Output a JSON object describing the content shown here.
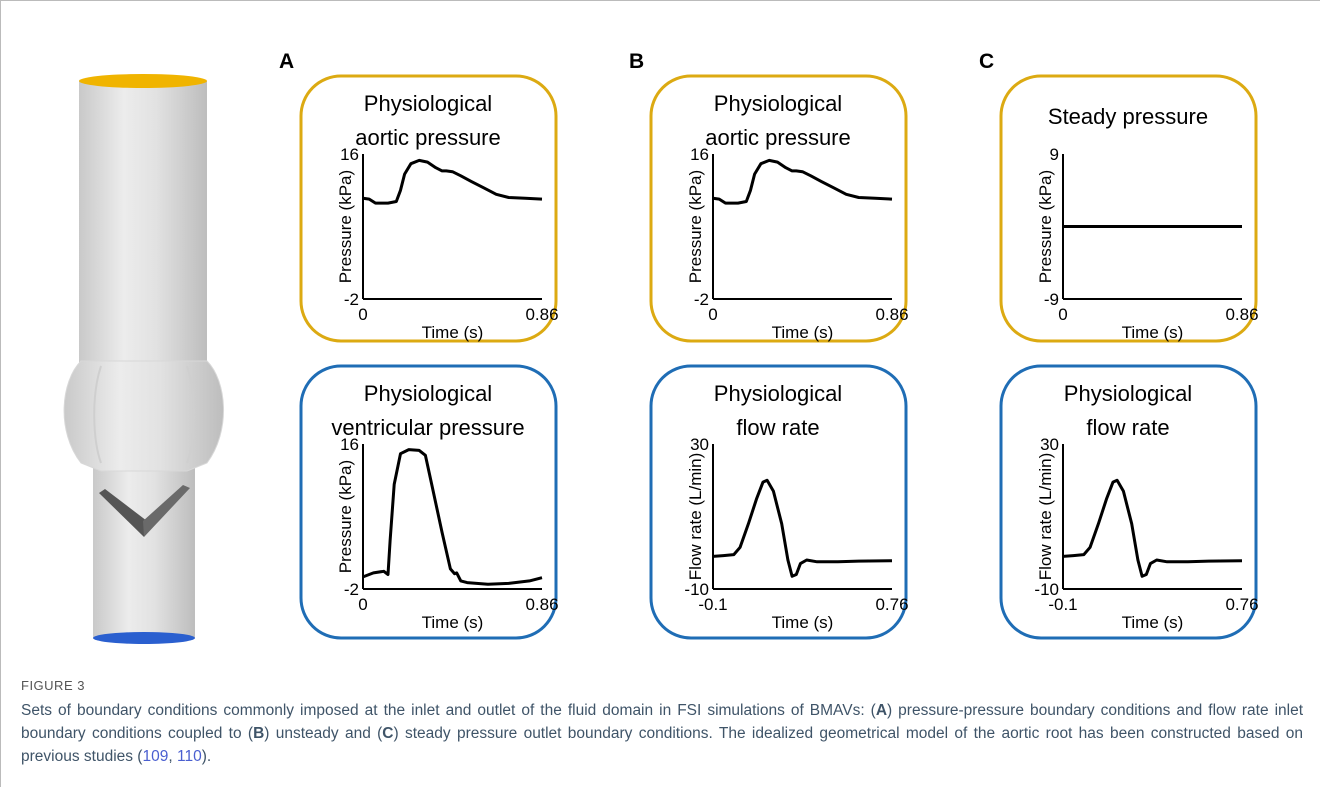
{
  "figure_label": "FIGURE 3",
  "panels": [
    "A",
    "B",
    "C"
  ],
  "chart_data": [
    {
      "type": "line",
      "title": [
        "Physiological",
        "aortic pressure"
      ],
      "x_label": "Time (s)",
      "y_label": "Pressure (kPa)",
      "border_color": "#dcaa12",
      "color": "#000000",
      "x": [
        0,
        0.03,
        0.06,
        0.12,
        0.16,
        0.18,
        0.2,
        0.23,
        0.27,
        0.31,
        0.35,
        0.38,
        0.4,
        0.43,
        0.47,
        0.52,
        0.58,
        0.64,
        0.7,
        0.78,
        0.86
      ],
      "values": [
        10.5,
        10.4,
        9.9,
        9.9,
        10.1,
        11.5,
        13.5,
        14.8,
        15.2,
        15.0,
        14.3,
        13.9,
        13.9,
        13.8,
        13.3,
        12.6,
        11.8,
        11.0,
        10.6,
        10.5,
        10.4
      ],
      "xlim": [
        0,
        0.86
      ],
      "xticks": [
        0,
        0.86
      ],
      "ylim": [
        -2,
        16
      ],
      "yticks": [
        16,
        -2
      ]
    },
    {
      "type": "line",
      "title": [
        "Physiological",
        "ventricular pressure"
      ],
      "x_label": "Time (s)",
      "y_label": "Pressure (kPa)",
      "border_color": "#1f6db5",
      "color": "#000000",
      "x": [
        0,
        0.05,
        0.1,
        0.12,
        0.13,
        0.15,
        0.18,
        0.22,
        0.27,
        0.3,
        0.33,
        0.38,
        0.42,
        0.44,
        0.45,
        0.47,
        0.5,
        0.6,
        0.7,
        0.8,
        0.86
      ],
      "values": [
        -0.5,
        0,
        0.2,
        -0.2,
        4,
        11,
        14.8,
        15.3,
        15.2,
        14.6,
        11,
        5,
        0.5,
        -0.1,
        0,
        -1,
        -1.2,
        -1.4,
        -1.3,
        -1,
        -0.6
      ],
      "xlim": [
        0,
        0.86
      ],
      "xticks": [
        0,
        0.86
      ],
      "ylim": [
        -2,
        16
      ],
      "yticks": [
        16,
        -2
      ]
    },
    {
      "type": "line",
      "title": [
        "Physiological",
        "aortic pressure"
      ],
      "x_label": "Time (s)",
      "y_label": "Pressure (kPa)",
      "border_color": "#dcaa12",
      "color": "#000000",
      "x": [
        0,
        0.03,
        0.06,
        0.12,
        0.16,
        0.18,
        0.2,
        0.23,
        0.27,
        0.31,
        0.35,
        0.38,
        0.4,
        0.43,
        0.47,
        0.52,
        0.58,
        0.64,
        0.7,
        0.78,
        0.86
      ],
      "values": [
        10.5,
        10.4,
        9.9,
        9.9,
        10.1,
        11.5,
        13.5,
        14.8,
        15.2,
        15.0,
        14.3,
        13.9,
        13.9,
        13.8,
        13.3,
        12.6,
        11.8,
        11.0,
        10.6,
        10.5,
        10.4
      ],
      "xlim": [
        0,
        0.86
      ],
      "xticks": [
        0,
        0.86
      ],
      "ylim": [
        -2,
        16
      ],
      "yticks": [
        16,
        -2
      ]
    },
    {
      "type": "line",
      "title": [
        "Physiological",
        "flow rate"
      ],
      "x_label": "Time (s)",
      "y_label": "Flow rate (L/min)",
      "border_color": "#1f6db5",
      "color": "#000000",
      "x": [
        -0.1,
        -0.05,
        0,
        0.03,
        0.07,
        0.11,
        0.14,
        0.16,
        0.19,
        0.23,
        0.26,
        0.28,
        0.3,
        0.32,
        0.35,
        0.4,
        0.5,
        0.6,
        0.76
      ],
      "values": [
        -1,
        -0.8,
        -0.5,
        1.5,
        8,
        15,
        19.5,
        20,
        17,
        8,
        -2,
        -6.5,
        -6,
        -3,
        -2,
        -2.5,
        -2.5,
        -2.3,
        -2.2
      ],
      "xlim": [
        -0.1,
        0.76
      ],
      "xticks": [
        -0.1,
        0.76
      ],
      "ylim": [
        -10,
        30
      ],
      "yticks": [
        30,
        -10
      ]
    },
    {
      "type": "line",
      "title": [
        "Steady pressure"
      ],
      "x_label": "Time (s)",
      "y_label": "Pressure (kPa)",
      "border_color": "#dcaa12",
      "color": "#000000",
      "x": [
        0,
        0.86
      ],
      "values": [
        0,
        0
      ],
      "xlim": [
        0,
        0.86
      ],
      "xticks": [
        0,
        0.86
      ],
      "ylim": [
        -9,
        9
      ],
      "yticks": [
        9,
        -9
      ]
    },
    {
      "type": "line",
      "title": [
        "Physiological",
        "flow rate"
      ],
      "x_label": "Time (s)",
      "y_label": "Flow rate (L/min)",
      "border_color": "#1f6db5",
      "color": "#000000",
      "x": [
        -0.1,
        -0.05,
        0,
        0.03,
        0.07,
        0.11,
        0.14,
        0.16,
        0.19,
        0.23,
        0.26,
        0.28,
        0.3,
        0.32,
        0.35,
        0.4,
        0.5,
        0.6,
        0.76
      ],
      "values": [
        -1,
        -0.8,
        -0.5,
        1.5,
        8,
        15,
        19.5,
        20,
        17,
        8,
        -2,
        -6.5,
        -6,
        -3,
        -2,
        -2.5,
        -2.5,
        -2.3,
        -2.2
      ],
      "xlim": [
        -0.1,
        0.76
      ],
      "xticks": [
        -0.1,
        0.76
      ],
      "ylim": [
        -10,
        30
      ],
      "yticks": [
        30,
        -10
      ]
    }
  ],
  "caption": [
    {
      "text": "Sets of boundary conditions commonly imposed at the inlet and outlet of the fluid domain in FSI simulations of BMAVs: (",
      "style": "plain"
    },
    {
      "text": "A",
      "style": "bold"
    },
    {
      "text": ") pressure-pressure boundary conditions and flow rate inlet boundary conditions coupled to (",
      "style": "plain"
    },
    {
      "text": "B",
      "style": "bold"
    },
    {
      "text": ") unsteady and (",
      "style": "plain"
    },
    {
      "text": "C",
      "style": "bold"
    },
    {
      "text": ") steady pressure outlet boundary conditions. The idealized geometrical model of the aortic root has been constructed based on previous studies (",
      "style": "plain"
    },
    {
      "text": "109",
      "style": "link"
    },
    {
      "text": ", ",
      "style": "plain"
    },
    {
      "text": "110",
      "style": "link"
    },
    {
      "text": ").",
      "style": "plain"
    }
  ]
}
